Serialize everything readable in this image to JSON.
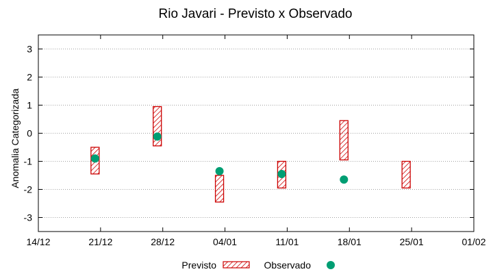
{
  "chart_data": {
    "type": "range-bar-scatter",
    "title": "Rio Javari - Previsto x Observado",
    "ylabel": "Anomalia Categorizada",
    "xlabel": "",
    "ylim": [
      -3.5,
      3.5
    ],
    "yticks": [
      -3,
      -2,
      -1,
      0,
      1,
      2,
      3
    ],
    "xticks": [
      "14/12",
      "21/12",
      "28/12",
      "04/01",
      "11/01",
      "18/01",
      "25/01",
      "01/02"
    ],
    "grid": true,
    "legend": {
      "placement": "bottom",
      "entries": [
        {
          "name": "Previsto",
          "style": "hatched-box",
          "color": "#cc0000"
        },
        {
          "name": "Observado",
          "style": "dot",
          "color": "#009e73"
        }
      ]
    },
    "previsto": [
      {
        "x": "21/12",
        "low": -1.45,
        "high": -0.5
      },
      {
        "x": "28/12",
        "low": -0.45,
        "high": 0.95
      },
      {
        "x": "04/01",
        "low": -2.45,
        "high": -1.5
      },
      {
        "x": "11/01",
        "low": -1.95,
        "high": -1.0
      },
      {
        "x": "18/01",
        "low": -0.95,
        "high": 0.45
      },
      {
        "x": "25/01",
        "low": -1.95,
        "high": -1.0
      }
    ],
    "observado": [
      {
        "x": "21/12",
        "y": -0.9
      },
      {
        "x": "28/12",
        "y": -0.12
      },
      {
        "x": "04/01",
        "y": -1.35
      },
      {
        "x": "11/01",
        "y": -1.45
      },
      {
        "x": "18/01",
        "y": -1.65
      }
    ],
    "colors": {
      "previsto": "#cc0000",
      "observado": "#009e73",
      "grid": "#a0a0a0"
    }
  }
}
